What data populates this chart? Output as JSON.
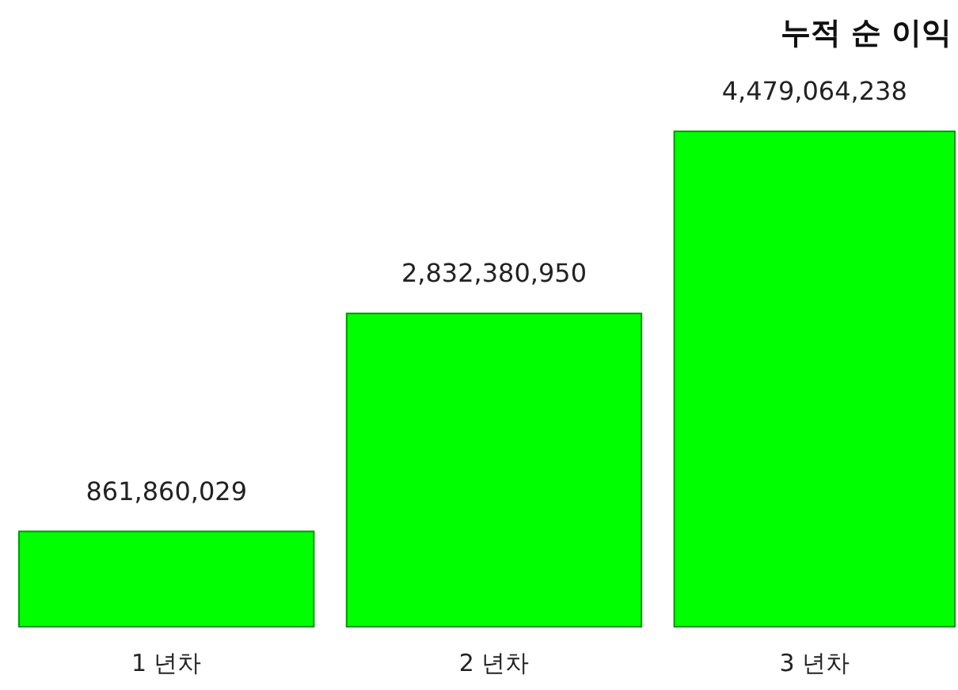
{
  "chart_data": {
    "type": "bar",
    "title": "누적 순 이익",
    "categories": [
      "1 년차",
      "2 년차",
      "3 년차"
    ],
    "values": [
      861860029,
      2832380950,
      4479064238
    ],
    "value_labels": [
      "861,860,029",
      "2,832,380,950",
      "4,479,064,238"
    ],
    "color": "#00ff00"
  }
}
